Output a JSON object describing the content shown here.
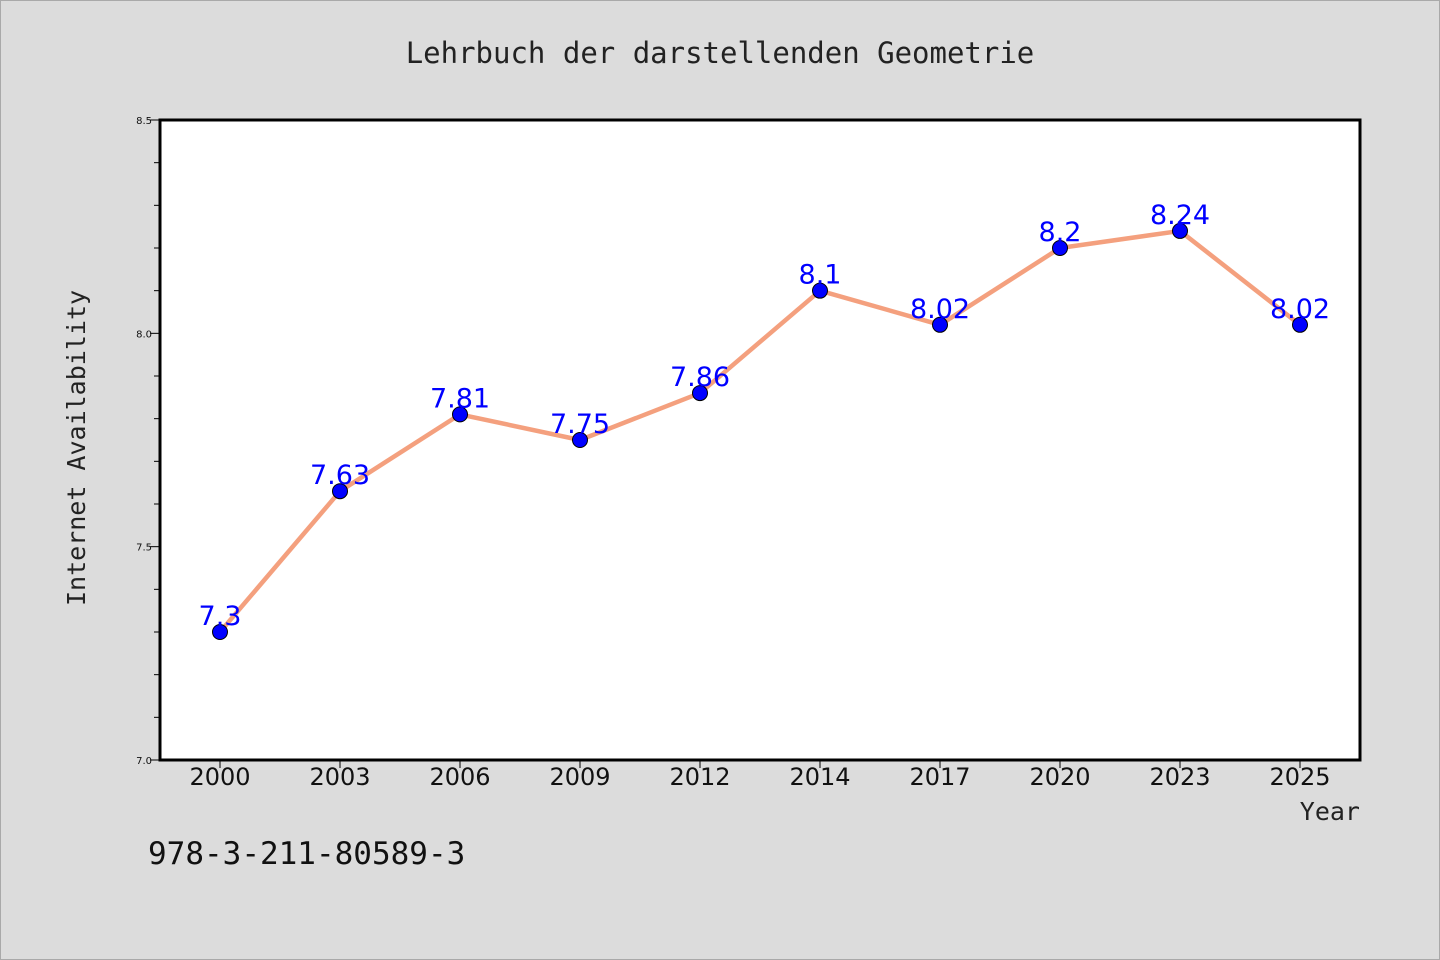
{
  "isbn": "978-3-211-80589-3",
  "colors": {
    "background": "#dcdcdc",
    "plot_background": "#ffffff",
    "line": "#f4a07e",
    "marker": "#0000ff",
    "data_label": "#0000ff"
  },
  "chart_data": {
    "type": "line",
    "title": "Lehrbuch der darstellenden Geometrie",
    "xlabel": "Year",
    "ylabel": "Internet Availability",
    "categories": [
      "2000",
      "2003",
      "2006",
      "2009",
      "2012",
      "2014",
      "2017",
      "2020",
      "2023",
      "2025"
    ],
    "series": [
      {
        "values": [
          7.3,
          7.63,
          7.81,
          7.75,
          7.86,
          8.1,
          8.02,
          8.2,
          8.24,
          8.02
        ],
        "data_labels": [
          "7.3",
          "7.63",
          "7.81",
          "7.75",
          "7.86",
          "8.1",
          "8.02",
          "8.2",
          "8.24",
          "8.02"
        ]
      }
    ],
    "ylim": [
      7.0,
      8.5
    ],
    "yticks": [
      "7.0",
      "7.5",
      "8.0",
      "8.5"
    ],
    "grid": false,
    "legend": "none"
  }
}
